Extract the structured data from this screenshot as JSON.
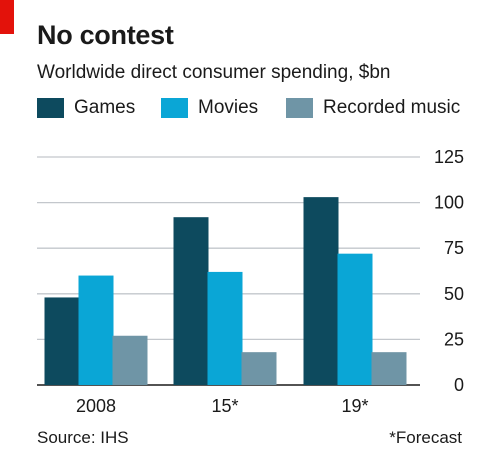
{
  "header": {
    "title": "No contest",
    "subtitle": "Worldwide direct consumer spending, $bn"
  },
  "colors": {
    "accent": "#e3120b",
    "grid": "#c3c7cc",
    "baseline": "#1a1a1a"
  },
  "footer": {
    "source": "Source: IHS",
    "note": "*Forecast"
  },
  "chart_data": {
    "type": "bar",
    "title": "No contest",
    "subtitle": "Worldwide direct consumer spending, $bn",
    "xlabel": "",
    "ylabel": "",
    "categories": [
      "2008",
      "15*",
      "19*"
    ],
    "series": [
      {
        "name": "Games",
        "color": "#0d4a5e",
        "values": [
          48,
          92,
          103
        ]
      },
      {
        "name": "Movies",
        "color": "#0aa6d6",
        "values": [
          60,
          62,
          72
        ]
      },
      {
        "name": "Recorded music",
        "color": "#6f95a6",
        "values": [
          27,
          18,
          18
        ]
      }
    ],
    "ylim": [
      0,
      125
    ],
    "yticks": [
      0,
      25,
      50,
      75,
      100,
      125
    ],
    "y_axis_side": "right",
    "grid": true,
    "legend_position": "top-left"
  }
}
